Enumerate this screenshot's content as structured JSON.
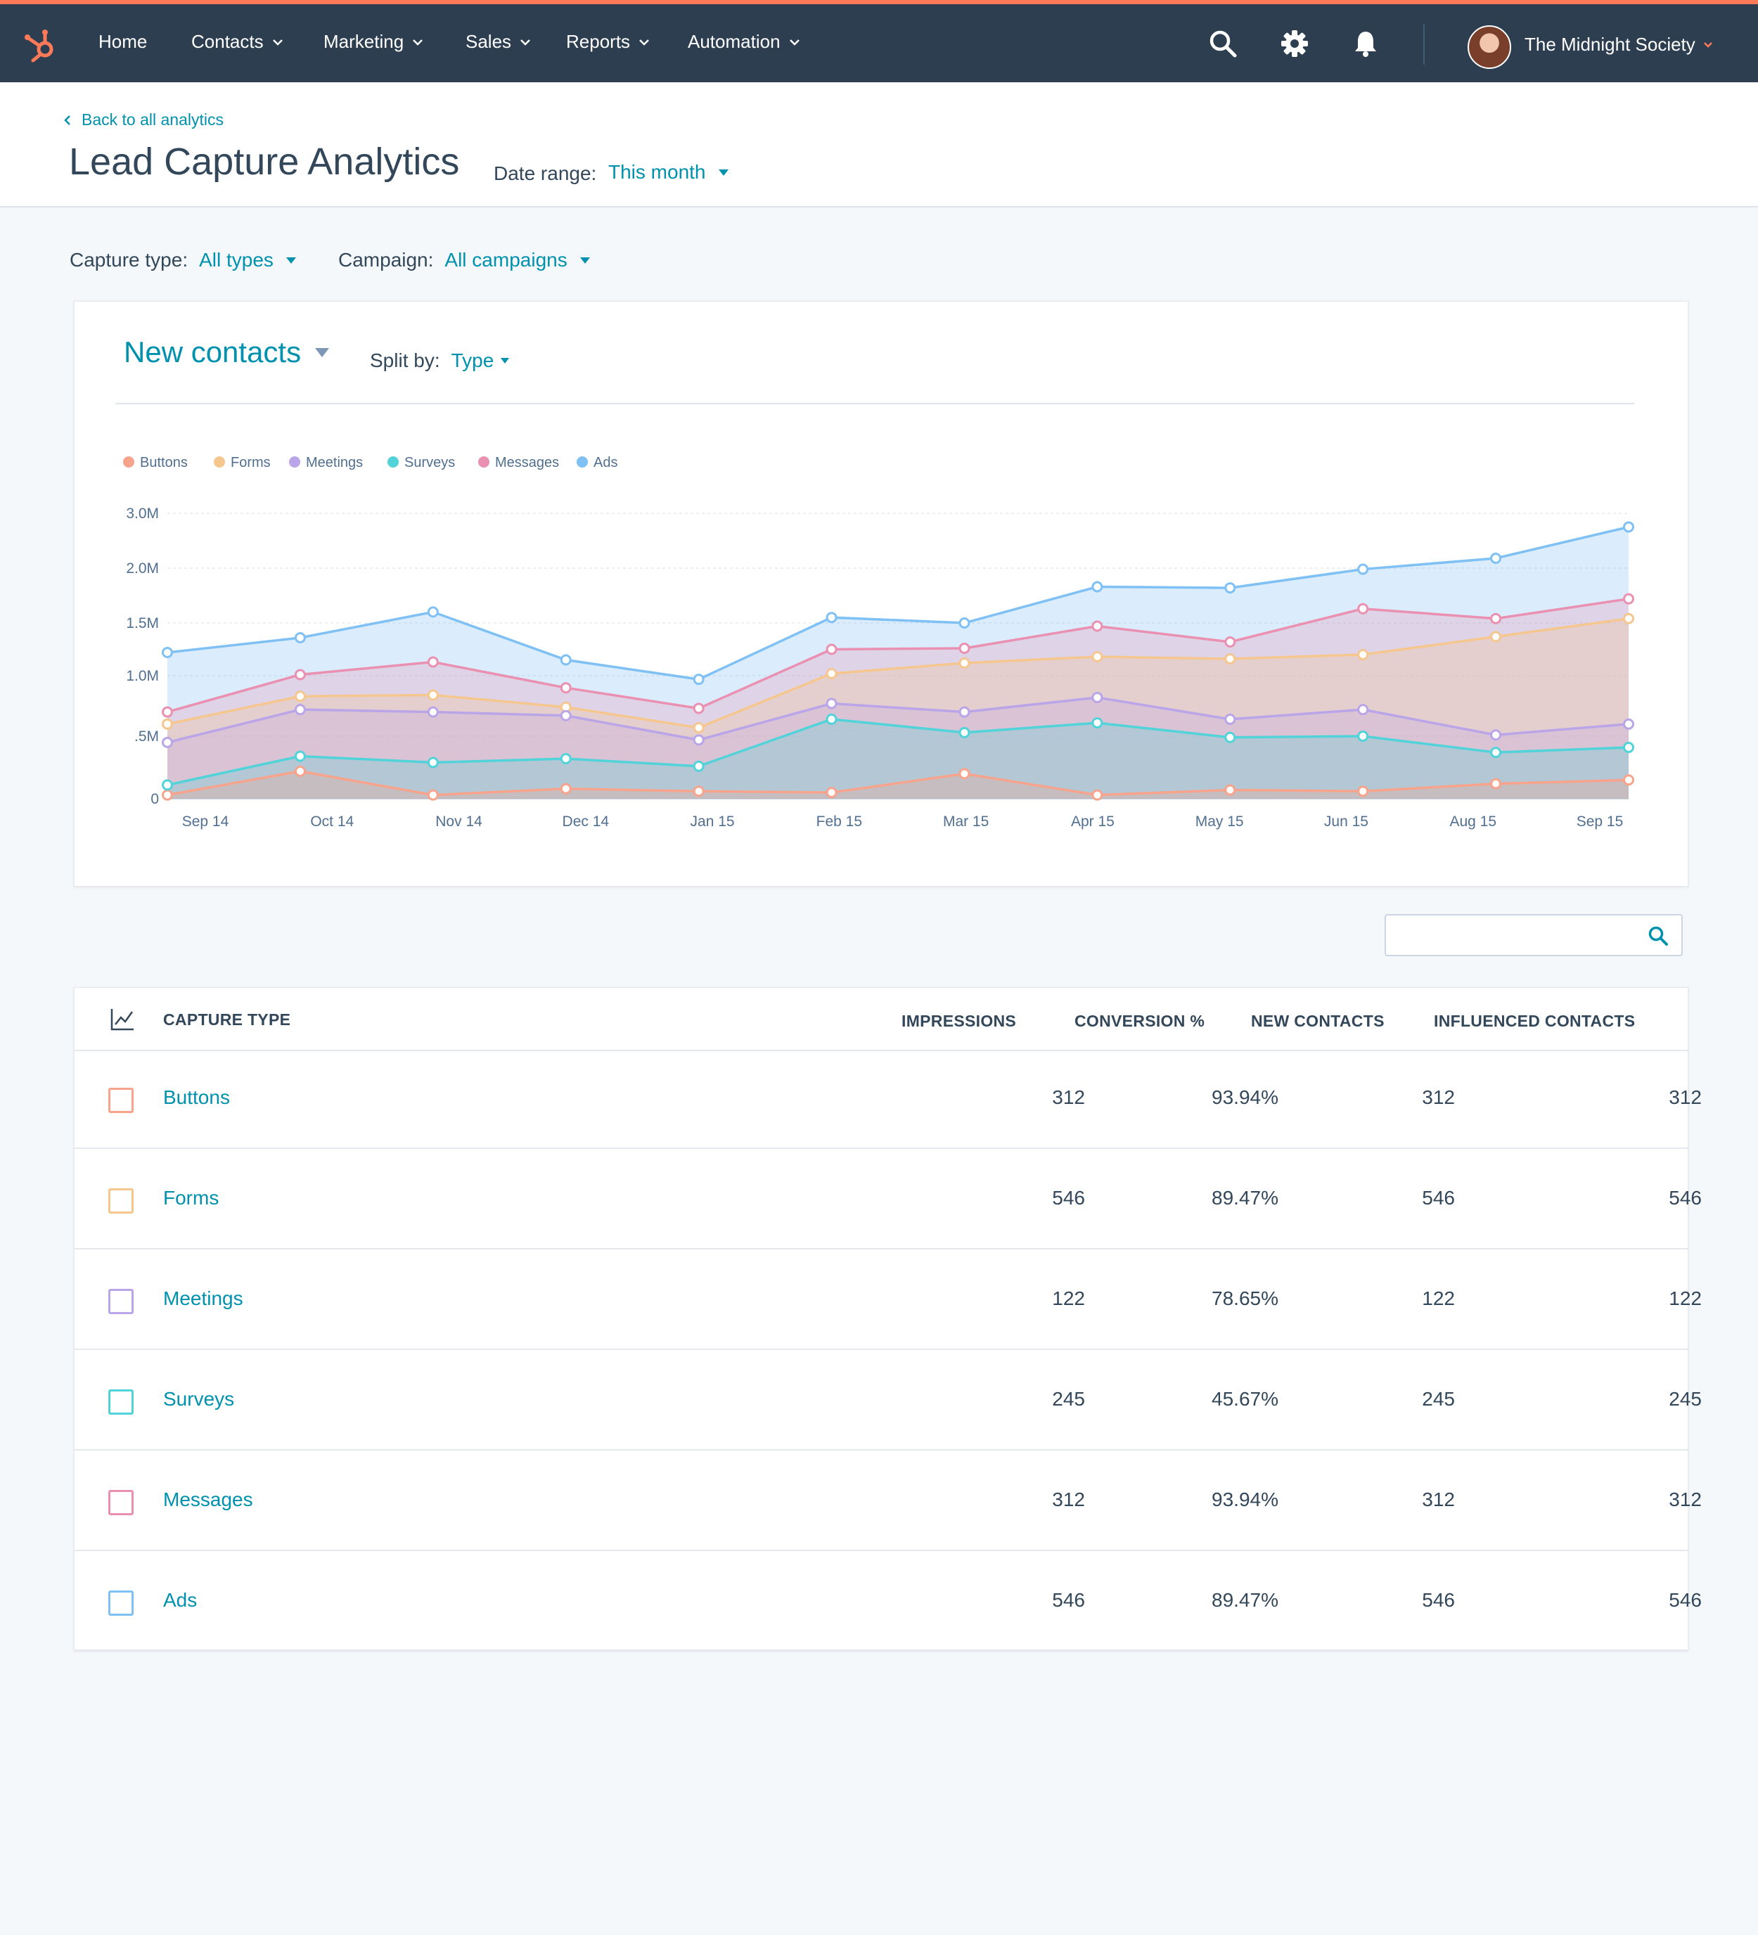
{
  "nav": {
    "items": [
      {
        "label": "Home",
        "dropdown": false
      },
      {
        "label": "Contacts",
        "dropdown": true
      },
      {
        "label": "Marketing",
        "dropdown": true
      },
      {
        "label": "Sales",
        "dropdown": true
      },
      {
        "label": "Reports",
        "dropdown": true
      },
      {
        "label": "Automation",
        "dropdown": true
      }
    ],
    "account_name": "The Midnight Society",
    "icons": [
      "sprocket-logo-icon",
      "search-icon",
      "gear-icon",
      "bell-icon"
    ],
    "brand_color": "#ff7a59",
    "bar_color": "#2d3e50"
  },
  "header": {
    "back_link": "Back to all analytics",
    "title": "Lead Capture Analytics",
    "date_range_label": "Date range:",
    "date_range_value": "This month"
  },
  "filters": {
    "capture_type_label": "Capture type:",
    "capture_type_value": "All types",
    "campaign_label": "Campaign:",
    "campaign_value": "All campaigns"
  },
  "chart_card": {
    "metric": "New contacts",
    "split_label": "Split by:",
    "split_value": "Type"
  },
  "chart_data": {
    "type": "area",
    "stacked": true,
    "categories": [
      "Sep 14",
      "Oct 14",
      "Nov 14",
      "Dec 14",
      "Jan 15",
      "Feb 15",
      "Mar 15",
      "Apr 15",
      "May 15",
      "Jun 15",
      "Aug 15",
      "Sep 15"
    ],
    "y_ticks": [
      "0",
      ".5M",
      "1.0M",
      "1.5M",
      "2.0M",
      "3.0M"
    ],
    "legend_position": "top-left",
    "grid": true,
    "series": [
      {
        "name": "Buttons",
        "color": "#f8a48c",
        "values": [
          0.03,
          0.22,
          0.03,
          0.08,
          0.06,
          0.05,
          0.2,
          0.03,
          0.07,
          0.06,
          0.12,
          0.15
        ]
      },
      {
        "name": "Forms",
        "color": "#f5c78e",
        "values": [
          0.6,
          0.83,
          0.84,
          0.74,
          0.57,
          1.02,
          1.12,
          1.18,
          1.16,
          1.2,
          1.37,
          1.54
        ]
      },
      {
        "name": "Meetings",
        "color": "#b9a5e8",
        "values": [
          0.45,
          0.72,
          0.7,
          0.67,
          0.47,
          0.77,
          0.7,
          0.82,
          0.64,
          0.72,
          0.51,
          0.6
        ]
      },
      {
        "name": "Surveys",
        "color": "#51d3d9",
        "values": [
          0.11,
          0.34,
          0.29,
          0.32,
          0.26,
          0.64,
          0.53,
          0.61,
          0.49,
          0.5,
          0.37,
          0.41
        ]
      },
      {
        "name": "Messages",
        "color": "#ea90b1",
        "values": [
          0.7,
          1.01,
          1.13,
          0.9,
          0.73,
          1.25,
          1.26,
          1.47,
          1.32,
          1.63,
          1.54,
          1.72
        ]
      },
      {
        "name": "Ads",
        "color": "#7fc0f5",
        "values": [
          1.22,
          1.36,
          1.6,
          1.15,
          0.97,
          1.55,
          1.5,
          1.83,
          1.82,
          1.99,
          2.18,
          2.75
        ]
      }
    ]
  },
  "search": {
    "placeholder": ""
  },
  "table": {
    "headers": [
      "CAPTURE TYPE",
      "IMPRESSIONS",
      "CONVERSION %",
      "NEW CONTACTS",
      "INFLUENCED CONTACTS"
    ],
    "rows": [
      {
        "name": "Buttons",
        "color": "#f8a48c",
        "impressions": "312",
        "conversion": "93.94%",
        "new_contacts": "312",
        "influenced": "312"
      },
      {
        "name": "Forms",
        "color": "#f5c78e",
        "impressions": "546",
        "conversion": "89.47%",
        "new_contacts": "546",
        "influenced": "546"
      },
      {
        "name": "Meetings",
        "color": "#b9a5e8",
        "impressions": "122",
        "conversion": "78.65%",
        "new_contacts": "122",
        "influenced": "122"
      },
      {
        "name": "Surveys",
        "color": "#51d3d9",
        "impressions": "245",
        "conversion": "45.67%",
        "new_contacts": "245",
        "influenced": "245"
      },
      {
        "name": "Messages",
        "color": "#ea90b1",
        "impressions": "312",
        "conversion": "93.94%",
        "new_contacts": "312",
        "influenced": "312"
      },
      {
        "name": "Ads",
        "color": "#7fc0f5",
        "impressions": "546",
        "conversion": "89.47%",
        "new_contacts": "546",
        "influenced": "546"
      }
    ]
  }
}
